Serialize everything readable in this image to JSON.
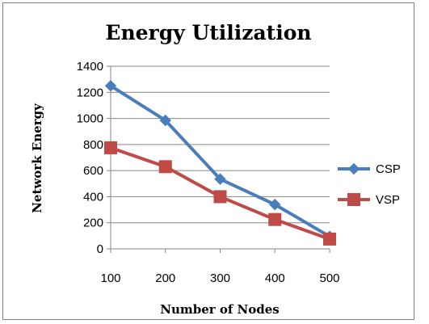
{
  "chart_data": {
    "type": "line",
    "title": "Energy Utilization",
    "xlabel": "Number of Nodes",
    "ylabel": "Network Energy",
    "categories": [
      "100",
      "200",
      "300",
      "400",
      "500"
    ],
    "ylim": [
      0,
      1400
    ],
    "yticks": [
      0,
      200,
      400,
      600,
      800,
      1000,
      1200,
      1400
    ],
    "grid": true,
    "legend_position": "right",
    "series": [
      {
        "name": "CSP",
        "values": [
          1250,
          985,
          535,
          340,
          95
        ],
        "color": "#4a7ebb",
        "marker": "diamond"
      },
      {
        "name": "VSP",
        "values": [
          775,
          630,
          400,
          225,
          75
        ],
        "color": "#be4b48",
        "marker": "square"
      }
    ]
  }
}
